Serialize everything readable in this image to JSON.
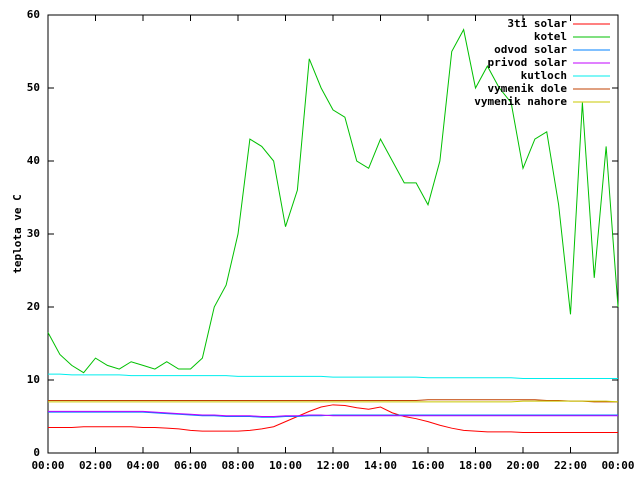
{
  "chart_data": {
    "type": "line",
    "y_label": "teplota ve C",
    "x": [
      0,
      0.5,
      1,
      1.5,
      2,
      2.5,
      3,
      3.5,
      4,
      4.5,
      5,
      5.5,
      6,
      6.5,
      7,
      7.5,
      8,
      8.5,
      9,
      9.5,
      10,
      10.5,
      11,
      11.5,
      12,
      12.5,
      13,
      13.5,
      14,
      14.5,
      15,
      15.5,
      16,
      16.5,
      17,
      17.5,
      18,
      18.5,
      19,
      19.5,
      20,
      20.5,
      21,
      21.5,
      22,
      22.5,
      23,
      23.5,
      24
    ],
    "xlim": [
      0,
      24
    ],
    "xticks": [
      {
        "value": 0,
        "label": "00:00"
      },
      {
        "value": 2,
        "label": "02:00"
      },
      {
        "value": 4,
        "label": "04:00"
      },
      {
        "value": 6,
        "label": "06:00"
      },
      {
        "value": 8,
        "label": "08:00"
      },
      {
        "value": 10,
        "label": "10:00"
      },
      {
        "value": 12,
        "label": "12:00"
      },
      {
        "value": 14,
        "label": "14:00"
      },
      {
        "value": 16,
        "label": "16:00"
      },
      {
        "value": 18,
        "label": "18:00"
      },
      {
        "value": 20,
        "label": "20:00"
      },
      {
        "value": 22,
        "label": "22:00"
      },
      {
        "value": 24,
        "label": "00:00"
      }
    ],
    "ylim": [
      0,
      60
    ],
    "yticks": [
      0,
      10,
      20,
      30,
      40,
      50,
      60
    ],
    "legend": "top-right",
    "series": [
      {
        "name": "3ti solar",
        "color": "#ff0000",
        "values": [
          3.5,
          3.5,
          3.5,
          3.6,
          3.6,
          3.6,
          3.6,
          3.6,
          3.5,
          3.5,
          3.4,
          3.3,
          3.1,
          3.0,
          3.0,
          3.0,
          3.0,
          3.1,
          3.3,
          3.6,
          4.3,
          5.0,
          5.7,
          6.3,
          6.6,
          6.5,
          6.2,
          6.0,
          6.3,
          5.5,
          5.0,
          4.7,
          4.3,
          3.8,
          3.4,
          3.1,
          3.0,
          2.9,
          2.9,
          2.9,
          2.8,
          2.8,
          2.8,
          2.8,
          2.8,
          2.8,
          2.8,
          2.8,
          2.8
        ]
      },
      {
        "name": "kotel",
        "color": "#00c000",
        "values": [
          16.5,
          13.5,
          12,
          11,
          13,
          12,
          11.5,
          12.5,
          12,
          11.5,
          12.5,
          11.5,
          11.5,
          13,
          20,
          23,
          30,
          43,
          42,
          40,
          31,
          36,
          54,
          50,
          47,
          46,
          40,
          39,
          43,
          40,
          37,
          37,
          34,
          40,
          55,
          58,
          50,
          53,
          50,
          48,
          39,
          43,
          44,
          34,
          19,
          48,
          24,
          42,
          20
        ]
      },
      {
        "name": "odvod solar",
        "color": "#0080ff",
        "values": [
          5.6,
          5.6,
          5.6,
          5.6,
          5.6,
          5.6,
          5.6,
          5.6,
          5.6,
          5.5,
          5.4,
          5.3,
          5.2,
          5.1,
          5.1,
          5.0,
          5.0,
          5.0,
          4.9,
          4.9,
          5.0,
          5.0,
          5.1,
          5.1,
          5.2,
          5.2,
          5.2,
          5.2,
          5.2,
          5.2,
          5.2,
          5.2,
          5.2,
          5.2,
          5.2,
          5.2,
          5.2,
          5.2,
          5.2,
          5.2,
          5.2,
          5.2,
          5.2,
          5.2,
          5.2,
          5.2,
          5.2,
          5.2,
          5.2
        ]
      },
      {
        "name": "privod solar",
        "color": "#c000ff",
        "values": [
          5.7,
          5.7,
          5.7,
          5.7,
          5.7,
          5.7,
          5.7,
          5.7,
          5.7,
          5.6,
          5.5,
          5.4,
          5.3,
          5.2,
          5.2,
          5.1,
          5.1,
          5.1,
          5.0,
          5.0,
          5.1,
          5.1,
          5.2,
          5.2,
          5.1,
          5.1,
          5.1,
          5.1,
          5.1,
          5.1,
          5.1,
          5.1,
          5.1,
          5.1,
          5.1,
          5.1,
          5.1,
          5.1,
          5.1,
          5.1,
          5.1,
          5.1,
          5.1,
          5.1,
          5.1,
          5.1,
          5.1,
          5.1,
          5.1
        ]
      },
      {
        "name": "kutloch",
        "color": "#00eeee",
        "values": [
          10.8,
          10.8,
          10.7,
          10.7,
          10.7,
          10.7,
          10.7,
          10.6,
          10.6,
          10.6,
          10.6,
          10.6,
          10.6,
          10.6,
          10.6,
          10.6,
          10.5,
          10.5,
          10.5,
          10.5,
          10.5,
          10.5,
          10.5,
          10.5,
          10.4,
          10.4,
          10.4,
          10.4,
          10.4,
          10.4,
          10.4,
          10.4,
          10.3,
          10.3,
          10.3,
          10.3,
          10.3,
          10.3,
          10.3,
          10.3,
          10.2,
          10.2,
          10.2,
          10.2,
          10.2,
          10.2,
          10.2,
          10.2,
          10.2
        ]
      },
      {
        "name": "vymenik dole",
        "color": "#c04000",
        "values": [
          7.2,
          7.2,
          7.2,
          7.2,
          7.2,
          7.2,
          7.2,
          7.2,
          7.2,
          7.2,
          7.2,
          7.2,
          7.2,
          7.2,
          7.2,
          7.2,
          7.2,
          7.2,
          7.2,
          7.2,
          7.2,
          7.2,
          7.2,
          7.2,
          7.2,
          7.2,
          7.2,
          7.2,
          7.2,
          7.2,
          7.2,
          7.2,
          7.3,
          7.3,
          7.3,
          7.3,
          7.3,
          7.3,
          7.3,
          7.3,
          7.3,
          7.3,
          7.2,
          7.2,
          7.1,
          7.1,
          7.0,
          7.0,
          7.0
        ]
      },
      {
        "name": "vymenik nahore",
        "color": "#c8c800",
        "values": [
          7.0,
          7.0,
          7.0,
          7.0,
          7.0,
          7.0,
          7.0,
          7.0,
          7.0,
          7.0,
          7.0,
          7.0,
          7.0,
          7.0,
          7.0,
          7.0,
          7.0,
          7.0,
          7.0,
          7.0,
          7.0,
          7.0,
          7.0,
          7.0,
          7.0,
          7.0,
          7.0,
          7.0,
          7.0,
          7.0,
          7.0,
          7.0,
          7.0,
          7.0,
          7.0,
          7.0,
          7.0,
          7.0,
          7.0,
          7.0,
          7.1,
          7.1,
          7.1,
          7.1,
          7.1,
          7.1,
          7.1,
          7.1,
          7.0
        ]
      }
    ]
  }
}
